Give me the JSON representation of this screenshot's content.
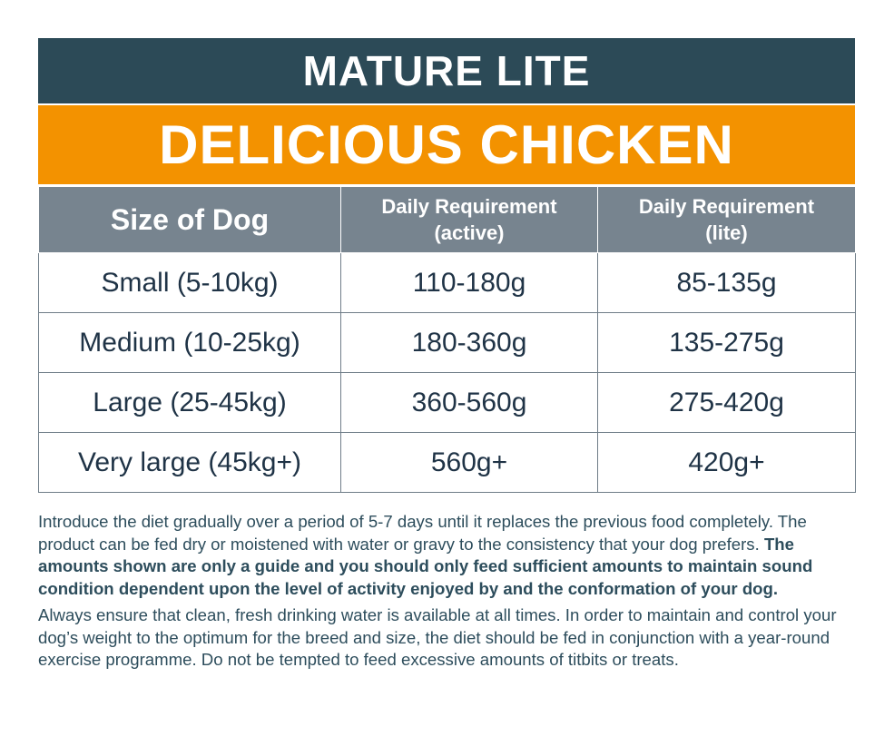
{
  "title": "MATURE LITE",
  "subtitle": "DELICIOUS CHICKEN",
  "table": {
    "headers": [
      "Size of Dog",
      "Daily Requirement (active)",
      "Daily Requirement (lite)"
    ],
    "rows": [
      [
        "Small (5-10kg)",
        "110-180g",
        "85-135g"
      ],
      [
        "Medium (10-25kg)",
        "180-360g",
        "135-275g"
      ],
      [
        "Large (25-45kg)",
        "360-560g",
        "275-420g"
      ],
      [
        "Very large (45kg+)",
        "560g+",
        "420g+"
      ]
    ]
  },
  "notes": {
    "p1_regular": "Introduce the diet gradually over a period of 5-7 days until it replaces the previous food completely. The product can be fed dry or moistened with water or gravy to the consistency that your dog prefers. ",
    "p1_bold": "The amounts shown are only a guide and you should only feed sufficient amounts to maintain sound condition dependent upon the level of activity enjoyed by and the conformation of your dog.",
    "p2": "Always ensure that clean, fresh drinking water is available at all times. In order to maintain and control your dog’s weight to the optimum for the breed and size, the diet should be fed in conjunction with a year-round exercise programme. Do not be tempted to feed excessive amounts of titbits or treats."
  },
  "colors": {
    "title_bg": "#2c4a57",
    "subtitle_bg": "#f39200",
    "header_bg": "#77848f",
    "text": "#1f3346"
  }
}
